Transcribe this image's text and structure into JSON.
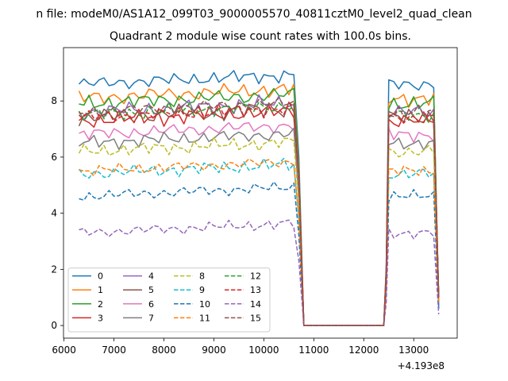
{
  "suptitle": "n file: modeM0/AS1A12_099T03_9000005570_40811cztM0_level2_quad_clean",
  "chart_data": {
    "type": "line",
    "title": "Quadrant 2 module wise count rates with 100.0s bins.",
    "xlabel": "",
    "ylabel": "",
    "x_offset_label": "+4.193e8",
    "xlim": [
      5990,
      13870
    ],
    "ylim": [
      -0.45,
      9.9
    ],
    "xticks": [
      6000,
      7000,
      8000,
      9000,
      10000,
      11000,
      12000,
      13000
    ],
    "yticks": [
      0,
      2,
      4,
      6,
      8
    ],
    "grid": false,
    "legend_position": "lower-left",
    "legend_columns": 4,
    "segments": [
      {
        "x_start": 6300,
        "x_end": 10700,
        "x_step": 100
      },
      {
        "x_start": 12400,
        "x_end": 13500,
        "x_step": 100
      }
    ],
    "series": [
      {
        "name": "0",
        "color": "#1f77b4",
        "dash": "solid",
        "level": 8.6,
        "amp": 0.3,
        "last": 0.6,
        "max": 9.4
      },
      {
        "name": "1",
        "color": "#ff7f0e",
        "dash": "solid",
        "level": 8.1,
        "amp": 0.35,
        "last": 0.9,
        "max": 9.1
      },
      {
        "name": "2",
        "color": "#2ca02c",
        "dash": "solid",
        "level": 7.9,
        "amp": 0.35,
        "last": 1.0,
        "max": 8.9
      },
      {
        "name": "3",
        "color": "#d62728",
        "dash": "solid",
        "level": 7.3,
        "amp": 0.35,
        "last": 1.0,
        "max": 8.2
      },
      {
        "name": "4",
        "color": "#9467bd",
        "dash": "solid",
        "level": 7.6,
        "amp": 0.35,
        "last": 1.0,
        "max": 8.6
      },
      {
        "name": "5",
        "color": "#8c564b",
        "dash": "solid",
        "level": 7.4,
        "amp": 0.4,
        "last": 1.0,
        "max": 8.5
      },
      {
        "name": "6",
        "color": "#e377c2",
        "dash": "solid",
        "level": 6.8,
        "amp": 0.3,
        "last": 0.9,
        "max": 7.6
      },
      {
        "name": "7",
        "color": "#7f7f7f",
        "dash": "solid",
        "level": 6.5,
        "amp": 0.3,
        "last": 0.9,
        "max": 7.2
      },
      {
        "name": "8",
        "color": "#bcbd22",
        "dash": "dashed",
        "level": 6.2,
        "amp": 0.3,
        "last": 0.8,
        "max": 7.0
      },
      {
        "name": "9",
        "color": "#17becf",
        "dash": "dashed",
        "level": 5.4,
        "amp": 0.3,
        "last": 0.8,
        "max": 6.0
      },
      {
        "name": "10",
        "color": "#1f77b4",
        "dash": "dashed",
        "level": 4.6,
        "amp": 0.25,
        "last": 0.6,
        "max": 5.2
      },
      {
        "name": "11",
        "color": "#ff7f0e",
        "dash": "dashed",
        "level": 5.5,
        "amp": 0.25,
        "last": 0.8,
        "max": 6.0
      },
      {
        "name": "12",
        "color": "#2ca02c",
        "dash": "dashed",
        "level": 7.5,
        "amp": 0.3,
        "last": 1.0,
        "max": 8.1
      },
      {
        "name": "13",
        "color": "#d62728",
        "dash": "dashed",
        "level": 7.4,
        "amp": 0.3,
        "last": 1.0,
        "max": 8.0
      },
      {
        "name": "14",
        "color": "#9467bd",
        "dash": "dashed",
        "level": 3.3,
        "amp": 0.25,
        "last": 0.4,
        "max": 4.0
      },
      {
        "name": "15",
        "color": "#8c564b",
        "dash": "dashed",
        "level": 7.6,
        "amp": 0.3,
        "last": 1.0,
        "max": 8.1
      }
    ]
  }
}
